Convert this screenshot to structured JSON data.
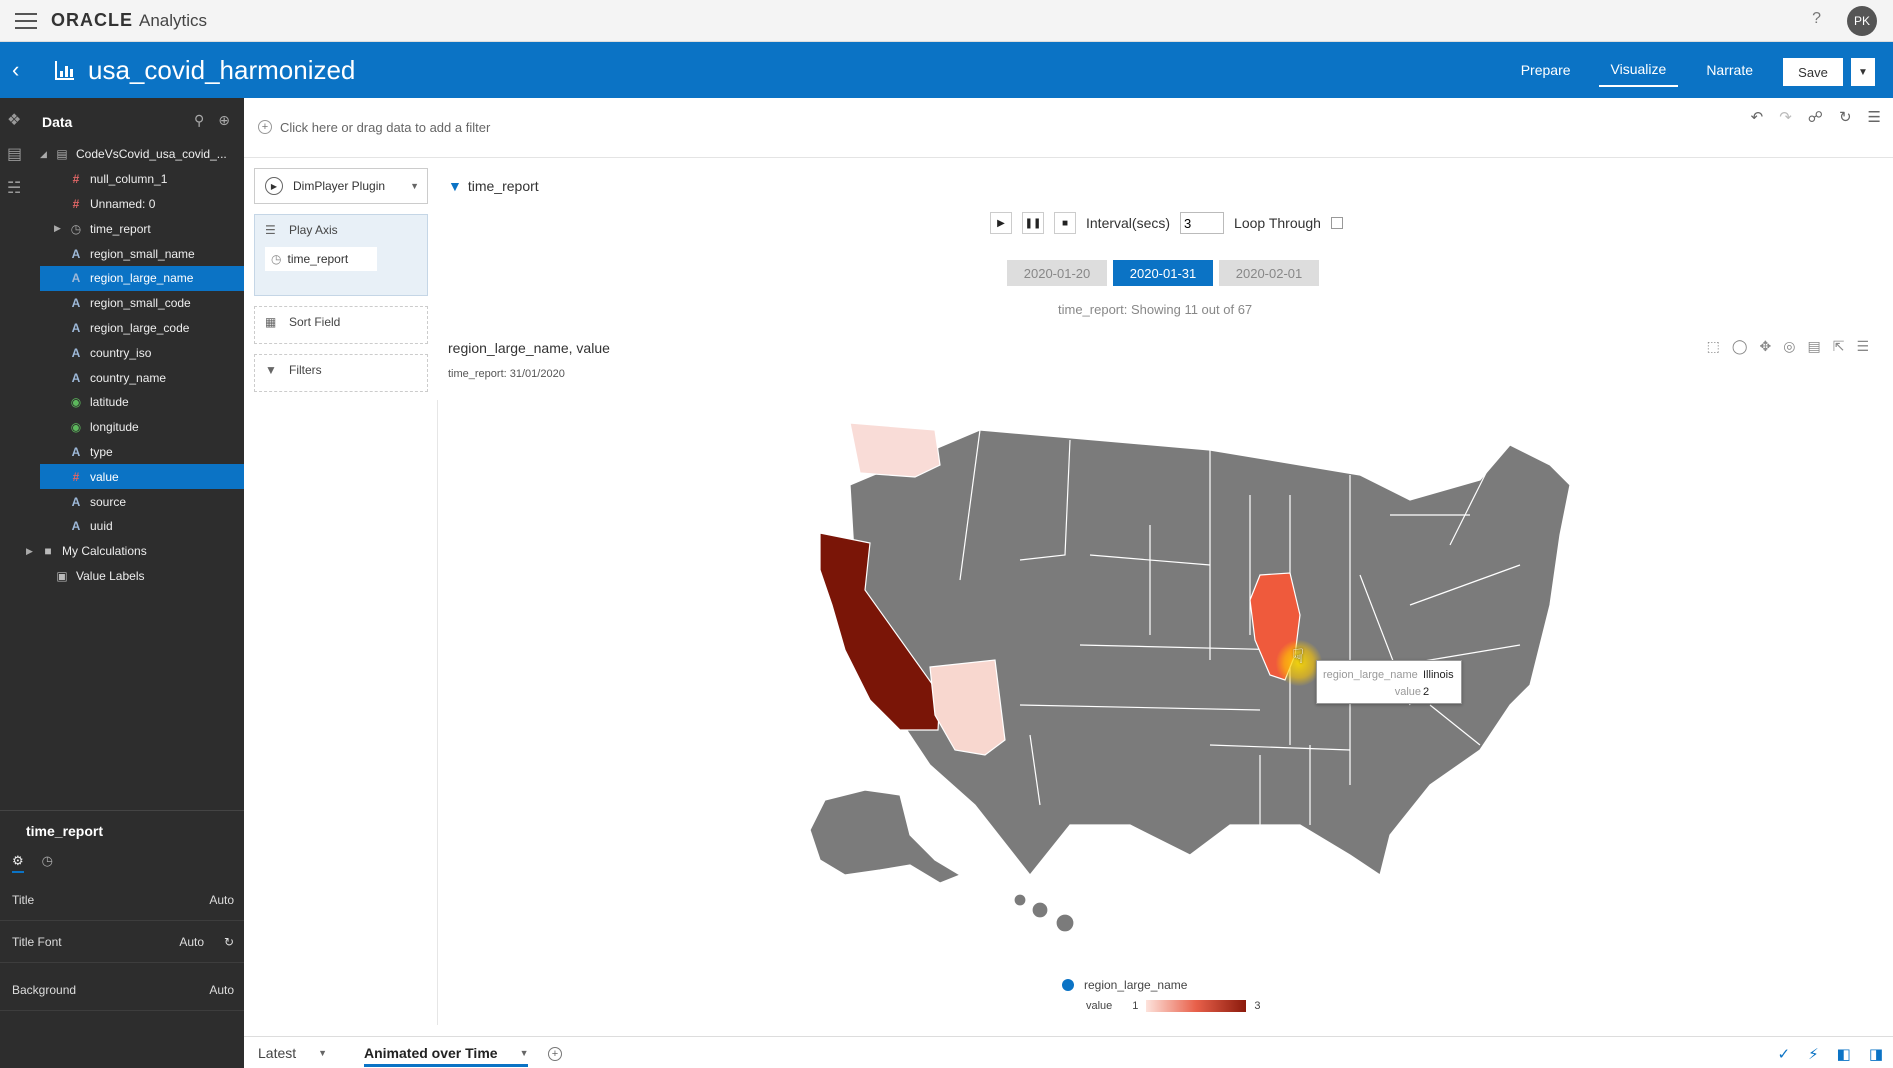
{
  "topbar": {
    "brand": "ORACLE",
    "product": "Analytics",
    "help": "?",
    "user_initials": "PK"
  },
  "header": {
    "dataset_title": "usa_covid_harmonized",
    "modes": [
      "Prepare",
      "Visualize",
      "Narrate"
    ],
    "active_mode": "Visualize",
    "save_label": "Save"
  },
  "data_panel": {
    "title": "Data",
    "source": "CodeVsCovid_usa_covid_...",
    "columns": [
      {
        "label": "null_column_1",
        "type": "number",
        "selected": false
      },
      {
        "label": "Unnamed: 0",
        "type": "number",
        "selected": false
      },
      {
        "label": "time_report",
        "type": "time",
        "selected": false,
        "expandable": true
      },
      {
        "label": "region_small_name",
        "type": "text",
        "selected": false
      },
      {
        "label": "region_large_name",
        "type": "text",
        "selected": true
      },
      {
        "label": "region_small_code",
        "type": "text",
        "selected": false
      },
      {
        "label": "region_large_code",
        "type": "text",
        "selected": false
      },
      {
        "label": "country_iso",
        "type": "text",
        "selected": false
      },
      {
        "label": "country_name",
        "type": "text",
        "selected": false
      },
      {
        "label": "latitude",
        "type": "geo",
        "selected": false
      },
      {
        "label": "longitude",
        "type": "geo",
        "selected": false
      },
      {
        "label": "type",
        "type": "text",
        "selected": false
      },
      {
        "label": "value",
        "type": "number",
        "selected": true
      },
      {
        "label": "source",
        "type": "text",
        "selected": false
      },
      {
        "label": "uuid",
        "type": "text",
        "selected": false
      }
    ],
    "my_calculations": "My Calculations",
    "value_labels": "Value Labels"
  },
  "properties": {
    "title": "time_report",
    "rows": [
      {
        "key": "Title",
        "value": "Auto"
      },
      {
        "key": "Title Font",
        "value": "Auto"
      },
      {
        "key": "Background",
        "value": "Auto"
      }
    ]
  },
  "filterbar": {
    "placeholder": "Click here or drag data to add a filter"
  },
  "grammar": {
    "plugin": "DimPlayer Plugin",
    "play_axis_label": "Play Axis",
    "play_axis_item": "time_report",
    "sort_field": "Sort Field",
    "filters": "Filters"
  },
  "viz": {
    "tag": "time_report",
    "interval_label": "Interval(secs)",
    "interval_value": "3",
    "loop_label": "Loop Through",
    "dates": [
      "2020-01-20",
      "2020-01-31",
      "2020-02-01"
    ],
    "active_date": "2020-01-31",
    "showing_text": "time_report: Showing 11 out of 67",
    "title": "region_large_name, value",
    "subtitle_key": "time_report:",
    "subtitle_value": "31/01/2020"
  },
  "map": {
    "states": [
      {
        "name": "Washington",
        "value": 1,
        "color": "#f9dcd7"
      },
      {
        "name": "California",
        "value": 3,
        "color": "#7a1507"
      },
      {
        "name": "Arizona",
        "value": 1,
        "color": "#f8d7cf"
      },
      {
        "name": "Illinois",
        "value": 2,
        "color": "#ef5a3c"
      }
    ],
    "default_color": "#7b7b7b"
  },
  "tooltip": {
    "key1": "region_large_name",
    "val1": "Illinois",
    "key2": "value",
    "val2": "2"
  },
  "legend": {
    "title": "region_large_name",
    "measure": "value",
    "min": "1",
    "max": "3"
  },
  "bottombar": {
    "tabs": [
      "Latest",
      "Animated over Time"
    ],
    "active_tab": "Animated over Time"
  }
}
